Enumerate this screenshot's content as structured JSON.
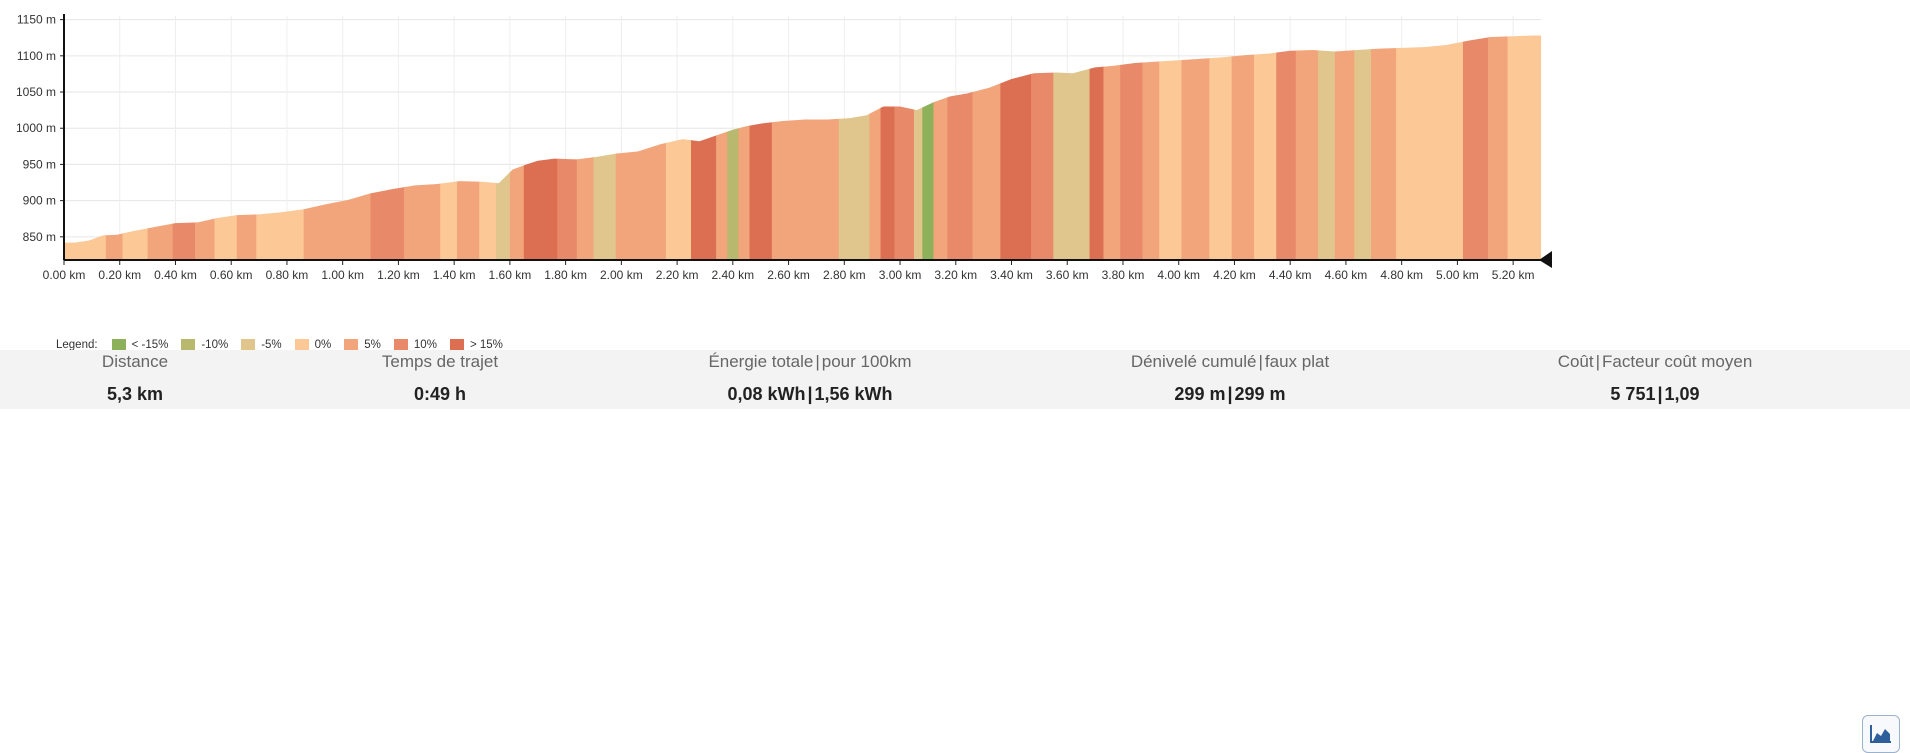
{
  "chart_data": {
    "type": "area",
    "title": "",
    "xlabel": "",
    "ylabel": "",
    "x_unit": "km",
    "y_unit": "m",
    "xlim": [
      0,
      5.3
    ],
    "ylim": [
      818,
      1155
    ],
    "x_ticks": [
      "0.00 km",
      "0.20 km",
      "0.40 km",
      "0.60 km",
      "0.80 km",
      "1.00 km",
      "1.20 km",
      "1.40 km",
      "1.60 km",
      "1.80 km",
      "2.00 km",
      "2.20 km",
      "2.40 km",
      "2.60 km",
      "2.80 km",
      "3.00 km",
      "3.20 km",
      "3.40 km",
      "3.60 km",
      "3.80 km",
      "4.00 km",
      "4.20 km",
      "4.40 km",
      "4.60 km",
      "4.80 km",
      "5.00 km",
      "5.20 km"
    ],
    "y_ticks": [
      "850 m",
      "900 m",
      "950 m",
      "1000 m",
      "1050 m",
      "1100 m",
      "1150 m"
    ],
    "grid": true,
    "legend_position": "bottom-left",
    "profile": {
      "x": [
        0,
        0.04,
        0.09,
        0.14,
        0.19,
        0.25,
        0.33,
        0.4,
        0.48,
        0.55,
        0.62,
        0.7,
        0.78,
        0.86,
        0.94,
        1.02,
        1.1,
        1.18,
        1.26,
        1.34,
        1.42,
        1.5,
        1.56,
        1.61,
        1.66,
        1.7,
        1.76,
        1.84,
        1.92,
        1.98,
        2.06,
        2.14,
        2.22,
        2.28,
        2.34,
        2.4,
        2.45,
        2.51,
        2.58,
        2.66,
        2.74,
        2.82,
        2.88,
        2.94,
        3.0,
        3.06,
        3.12,
        3.18,
        3.24,
        3.32,
        3.4,
        3.48,
        3.56,
        3.62,
        3.7,
        3.76,
        3.84,
        3.92,
        4.0,
        4.08,
        4.16,
        4.24,
        4.32,
        4.4,
        4.48,
        4.56,
        4.64,
        4.72,
        4.8,
        4.88,
        4.96,
        5.04,
        5.12,
        5.2,
        5.27,
        5.3
      ],
      "y": [
        842,
        842,
        845,
        852,
        853,
        858,
        864,
        869,
        870,
        876,
        880,
        881,
        884,
        888,
        895,
        901,
        910,
        916,
        921,
        923,
        927,
        926,
        924,
        943,
        950,
        955,
        958,
        957,
        961,
        965,
        968,
        978,
        985,
        982,
        990,
        998,
        1003,
        1007,
        1010,
        1012,
        1012,
        1014,
        1018,
        1030,
        1030,
        1025,
        1036,
        1044,
        1048,
        1056,
        1068,
        1076,
        1077,
        1076,
        1084,
        1086,
        1090,
        1092,
        1094,
        1096,
        1098,
        1101,
        1103,
        1107,
        1108,
        1106,
        1108,
        1110,
        1111,
        1112,
        1115,
        1121,
        1126,
        1127,
        1128,
        1128
      ]
    },
    "segments": [
      {
        "x0": 0.0,
        "x1": 0.15,
        "grade": "0%"
      },
      {
        "x0": 0.15,
        "x1": 0.21,
        "grade": "5%"
      },
      {
        "x0": 0.21,
        "x1": 0.3,
        "grade": "0%"
      },
      {
        "x0": 0.3,
        "x1": 0.39,
        "grade": "5%"
      },
      {
        "x0": 0.39,
        "x1": 0.47,
        "grade": "10%"
      },
      {
        "x0": 0.47,
        "x1": 0.54,
        "grade": "5%"
      },
      {
        "x0": 0.54,
        "x1": 0.62,
        "grade": "0%"
      },
      {
        "x0": 0.62,
        "x1": 0.69,
        "grade": "5%"
      },
      {
        "x0": 0.69,
        "x1": 0.86,
        "grade": "0%"
      },
      {
        "x0": 0.86,
        "x1": 0.96,
        "grade": "5%"
      },
      {
        "x0": 0.96,
        "x1": 1.1,
        "grade": "5%"
      },
      {
        "x0": 1.1,
        "x1": 1.22,
        "grade": "10%"
      },
      {
        "x0": 1.22,
        "x1": 1.35,
        "grade": "5%"
      },
      {
        "x0": 1.35,
        "x1": 1.41,
        "grade": "0%"
      },
      {
        "x0": 1.41,
        "x1": 1.49,
        "grade": "5%"
      },
      {
        "x0": 1.49,
        "x1": 1.55,
        "grade": "0%"
      },
      {
        "x0": 1.55,
        "x1": 1.6,
        "grade": "-5%"
      },
      {
        "x0": 1.6,
        "x1": 1.65,
        "grade": "5%"
      },
      {
        "x0": 1.65,
        "x1": 1.77,
        "grade": "> 15%"
      },
      {
        "x0": 1.77,
        "x1": 1.84,
        "grade": "10%"
      },
      {
        "x0": 1.84,
        "x1": 1.9,
        "grade": "5%"
      },
      {
        "x0": 1.9,
        "x1": 1.98,
        "grade": "-5%"
      },
      {
        "x0": 1.98,
        "x1": 2.16,
        "grade": "5%"
      },
      {
        "x0": 2.16,
        "x1": 2.25,
        "grade": "0%"
      },
      {
        "x0": 2.25,
        "x1": 2.34,
        "grade": "> 15%"
      },
      {
        "x0": 2.34,
        "x1": 2.38,
        "grade": "5%"
      },
      {
        "x0": 2.38,
        "x1": 2.42,
        "grade": "-10%"
      },
      {
        "x0": 2.42,
        "x1": 2.46,
        "grade": "5%"
      },
      {
        "x0": 2.46,
        "x1": 2.54,
        "grade": "> 15%"
      },
      {
        "x0": 2.54,
        "x1": 2.78,
        "grade": "5%"
      },
      {
        "x0": 2.78,
        "x1": 2.89,
        "grade": "-5%"
      },
      {
        "x0": 2.89,
        "x1": 2.93,
        "grade": "5%"
      },
      {
        "x0": 2.93,
        "x1": 2.98,
        "grade": "> 15%"
      },
      {
        "x0": 2.98,
        "x1": 3.05,
        "grade": "10%"
      },
      {
        "x0": 3.05,
        "x1": 3.08,
        "grade": "-5%"
      },
      {
        "x0": 3.08,
        "x1": 3.12,
        "grade": "< -15%"
      },
      {
        "x0": 3.12,
        "x1": 3.17,
        "grade": "5%"
      },
      {
        "x0": 3.17,
        "x1": 3.26,
        "grade": "10%"
      },
      {
        "x0": 3.26,
        "x1": 3.36,
        "grade": "5%"
      },
      {
        "x0": 3.36,
        "x1": 3.47,
        "grade": "> 15%"
      },
      {
        "x0": 3.47,
        "x1": 3.55,
        "grade": "10%"
      },
      {
        "x0": 3.55,
        "x1": 3.68,
        "grade": "-5%"
      },
      {
        "x0": 3.68,
        "x1": 3.73,
        "grade": "> 15%"
      },
      {
        "x0": 3.73,
        "x1": 3.79,
        "grade": "5%"
      },
      {
        "x0": 3.79,
        "x1": 3.87,
        "grade": "10%"
      },
      {
        "x0": 3.87,
        "x1": 3.93,
        "grade": "5%"
      },
      {
        "x0": 3.93,
        "x1": 4.01,
        "grade": "0%"
      },
      {
        "x0": 4.01,
        "x1": 4.11,
        "grade": "5%"
      },
      {
        "x0": 4.11,
        "x1": 4.19,
        "grade": "0%"
      },
      {
        "x0": 4.19,
        "x1": 4.27,
        "grade": "5%"
      },
      {
        "x0": 4.27,
        "x1": 4.35,
        "grade": "0%"
      },
      {
        "x0": 4.35,
        "x1": 4.42,
        "grade": "10%"
      },
      {
        "x0": 4.42,
        "x1": 4.5,
        "grade": "5%"
      },
      {
        "x0": 4.5,
        "x1": 4.56,
        "grade": "-5%"
      },
      {
        "x0": 4.56,
        "x1": 4.63,
        "grade": "5%"
      },
      {
        "x0": 4.63,
        "x1": 4.69,
        "grade": "-5%"
      },
      {
        "x0": 4.69,
        "x1": 4.78,
        "grade": "5%"
      },
      {
        "x0": 4.78,
        "x1": 4.87,
        "grade": "0%"
      },
      {
        "x0": 4.87,
        "x1": 4.96,
        "grade": "0%"
      },
      {
        "x0": 4.96,
        "x1": 5.02,
        "grade": "0%"
      },
      {
        "x0": 5.02,
        "x1": 5.11,
        "grade": "10%"
      },
      {
        "x0": 5.11,
        "x1": 5.18,
        "grade": "5%"
      },
      {
        "x0": 5.18,
        "x1": 5.3,
        "grade": "0%"
      }
    ]
  },
  "legend": {
    "title": "Legend:",
    "items": [
      {
        "label": "< -15%",
        "color": "#8db05a"
      },
      {
        "label": "-10%",
        "color": "#b8b86e"
      },
      {
        "label": "-5%",
        "color": "#e0c68c"
      },
      {
        "label": "0%",
        "color": "#fcc896"
      },
      {
        "label": "5%",
        "color": "#f2a57a"
      },
      {
        "label": "10%",
        "color": "#e8896a"
      },
      {
        "label": "> 15%",
        "color": "#dc6f52"
      }
    ]
  },
  "stats": {
    "distance": {
      "label": "Distance",
      "value": "5,3 km"
    },
    "duration": {
      "label": "Temps de trajet",
      "value": "0:49 h"
    },
    "energy": {
      "label_a": "Énergie totale",
      "label_b": "pour 100km",
      "value_a": "0,08 kWh",
      "value_b": "1,56 kWh"
    },
    "elevation": {
      "label_a": "Dénivelé cumulé",
      "label_b": "faux plat",
      "value_a": "299 m",
      "value_b": "299 m"
    },
    "cost": {
      "label_a": "Coût",
      "label_b": "Facteur coût moyen",
      "value_a": "5 751",
      "value_b": "1,09"
    }
  },
  "separator": "|",
  "button": {
    "icon": "area-chart-icon"
  }
}
